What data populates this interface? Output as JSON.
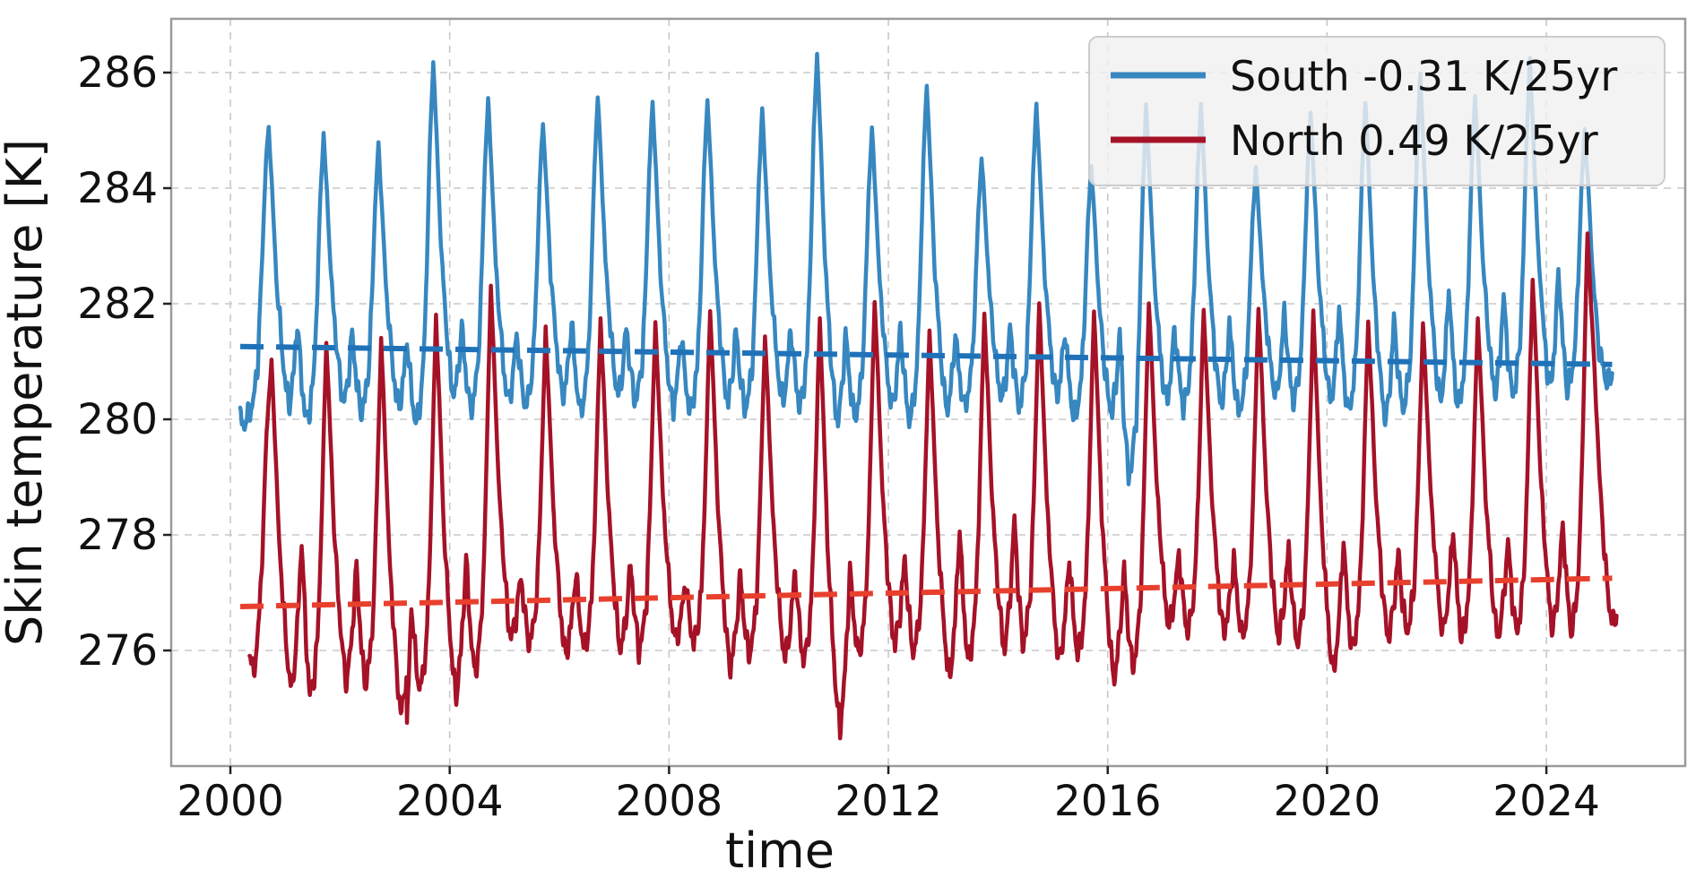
{
  "chart_data": {
    "type": "line",
    "title": "",
    "xlabel": "time",
    "ylabel": "Skin temperature [K]",
    "xlim": [
      1998.92,
      2026.54
    ],
    "ylim": [
      274.0,
      286.93
    ],
    "xticks": [
      2000,
      2004,
      2008,
      2012,
      2016,
      2020,
      2024
    ],
    "yticks": [
      276,
      278,
      280,
      282,
      284,
      286
    ],
    "grid": true,
    "legend_position": "upper right",
    "colors": {
      "south_line": "#3787c0",
      "south_trend": "#1f72b8",
      "north_line": "#a51227",
      "north_trend": "#e8402d",
      "gridline": "#c8c8c8",
      "frame": "#9a9a9a",
      "tick": "#222222",
      "legend_bg": "#f0f0f0",
      "legend_border": "#cccccc"
    },
    "series": [
      {
        "name": "South",
        "legend_label": "South -0.31 K/25yr",
        "trend_slope_per_25yr": -0.31,
        "trend_points": [
          [
            2000.18,
            281.26
          ],
          [
            2025.2,
            280.95
          ]
        ],
        "cycle_phases": {
          "peak": 0.7,
          "t1": 1.08,
          "spike": 1.22,
          "t2": 1.38
        },
        "years": [
          2000,
          2001,
          2002,
          2003,
          2004,
          2005,
          2006,
          2007,
          2008,
          2009,
          2010,
          2011,
          2012,
          2013,
          2014,
          2015,
          2016,
          2017,
          2018,
          2019,
          2020,
          2021,
          2022,
          2023,
          2024
        ],
        "peaks": [
          285.05,
          284.95,
          284.75,
          286.2,
          285.55,
          285.15,
          285.6,
          285.5,
          285.55,
          285.35,
          286.35,
          285.05,
          285.8,
          284.55,
          285.45,
          284.4,
          285.4,
          285.45,
          284.35,
          285.3,
          285.5,
          285.95,
          285.6,
          286.2,
          285.0
        ],
        "dip_years": [
          2001,
          2002,
          2003,
          2004,
          2005,
          2006,
          2007,
          2008,
          2009,
          2010,
          2011,
          2012,
          2013,
          2014,
          2015,
          2016,
          2017,
          2018,
          2019,
          2020,
          2021,
          2022,
          2023,
          2024,
          2025
        ],
        "trough1": [
          280.25,
          280.3,
          280.2,
          280.4,
          280.3,
          280.4,
          280.4,
          280.2,
          280.3,
          280.3,
          279.95,
          280.2,
          280.15,
          280.35,
          280.4,
          280.1,
          280.3,
          280.25,
          280.4,
          280.3,
          280.0,
          280.3,
          280.45,
          280.55,
          280.7
        ],
        "spike": [
          281.7,
          281.5,
          281.4,
          281.6,
          281.5,
          281.7,
          281.6,
          281.5,
          281.55,
          281.6,
          281.5,
          281.6,
          281.5,
          281.6,
          281.55,
          281.5,
          281.6,
          281.7,
          281.9,
          281.95,
          281.75,
          282.3,
          282.15,
          282.6
        ],
        "trough2": [
          279.95,
          280.1,
          279.9,
          280.15,
          280.2,
          280.1,
          280.3,
          280.1,
          280.15,
          280.2,
          280.0,
          279.95,
          280.2,
          280.2,
          280.0,
          279.0,
          280.2,
          280.1,
          280.3,
          280.1,
          280.15,
          280.2,
          280.4,
          280.5
        ],
        "start_points": [
          [
            2000.18,
            280.0
          ],
          [
            2000.25,
            279.9
          ],
          [
            2000.32,
            280.05
          ],
          [
            2000.42,
            280.3
          ],
          [
            2000.5,
            281.0
          ],
          [
            2000.58,
            282.8
          ],
          [
            2000.65,
            284.5
          ]
        ],
        "end_points": [
          [
            2024.76,
            284.1
          ],
          [
            2024.84,
            282.6
          ],
          [
            2024.95,
            281.3
          ],
          [
            2025.02,
            280.95
          ],
          [
            2025.08,
            280.7
          ],
          [
            2025.15,
            280.62
          ],
          [
            2025.2,
            280.8
          ]
        ],
        "extra_points": []
      },
      {
        "name": "North",
        "legend_label": "North 0.49 K/25yr",
        "trend_slope_per_25yr": 0.49,
        "trend_points": [
          [
            2000.18,
            276.76
          ],
          [
            2025.2,
            277.25
          ]
        ],
        "cycle_phases": {
          "peak": 0.75,
          "t1": 1.12,
          "spike": 1.3,
          "t2": 1.45
        },
        "years": [
          2000,
          2001,
          2002,
          2003,
          2004,
          2005,
          2006,
          2007,
          2008,
          2009,
          2010,
          2011,
          2012,
          2013,
          2014,
          2015,
          2016,
          2017,
          2018,
          2019,
          2020,
          2021,
          2022,
          2023,
          2024
        ],
        "peaks": [
          281.0,
          281.35,
          281.4,
          281.8,
          282.3,
          281.55,
          281.75,
          281.65,
          281.9,
          281.45,
          281.75,
          282.05,
          281.5,
          281.85,
          282.0,
          281.9,
          282.05,
          281.9,
          281.95,
          281.85,
          281.7,
          281.65,
          281.75,
          282.45,
          283.2
        ],
        "dip_years": [
          2001,
          2002,
          2003,
          2004,
          2005,
          2006,
          2007,
          2008,
          2009,
          2010,
          2011,
          2012,
          2013,
          2014,
          2015,
          2016,
          2017,
          2018,
          2019,
          2020,
          2021,
          2022,
          2023,
          2024,
          2025
        ],
        "trough1": [
          275.3,
          275.45,
          274.9,
          275.2,
          276.2,
          275.9,
          276.0,
          276.15,
          275.7,
          275.85,
          274.65,
          276.1,
          275.5,
          276.0,
          275.8,
          275.5,
          276.4,
          276.3,
          276.2,
          275.6,
          276.2,
          276.3,
          276.2,
          276.35,
          276.5
        ],
        "spike": [
          277.9,
          277.5,
          276.8,
          277.6,
          277.3,
          277.35,
          277.5,
          277.2,
          277.3,
          277.4,
          277.4,
          277.6,
          278.1,
          278.3,
          277.6,
          277.4,
          277.7,
          277.6,
          277.8,
          277.9,
          277.7,
          278.1,
          277.9,
          278.2
        ],
        "trough2": [
          275.2,
          275.4,
          275.3,
          275.6,
          276.1,
          276.0,
          276.0,
          276.1,
          275.9,
          275.8,
          275.9,
          275.95,
          275.8,
          276.1,
          275.9,
          275.7,
          276.3,
          276.2,
          276.1,
          276.0,
          276.3,
          276.2,
          276.3,
          276.3
        ],
        "start_points": [
          [
            2000.35,
            275.95
          ],
          [
            2000.42,
            275.6
          ],
          [
            2000.5,
            276.2
          ],
          [
            2000.58,
            277.6
          ],
          [
            2000.66,
            279.8
          ]
        ],
        "end_points": [
          [
            2024.8,
            282.3
          ],
          [
            2024.88,
            280.8
          ],
          [
            2024.97,
            279.0
          ],
          [
            2025.05,
            277.8
          ],
          [
            2025.14,
            276.8
          ],
          [
            2025.22,
            276.45
          ],
          [
            2025.28,
            276.6
          ]
        ],
        "extra_points": [
          [
            2003.22,
            274.6
          ]
        ]
      }
    ]
  },
  "legend": {
    "items": [
      {
        "label": "South -0.31 K/25yr",
        "color": "#3787c0"
      },
      {
        "label": "North 0.49 K/25yr",
        "color": "#a51227"
      }
    ]
  }
}
